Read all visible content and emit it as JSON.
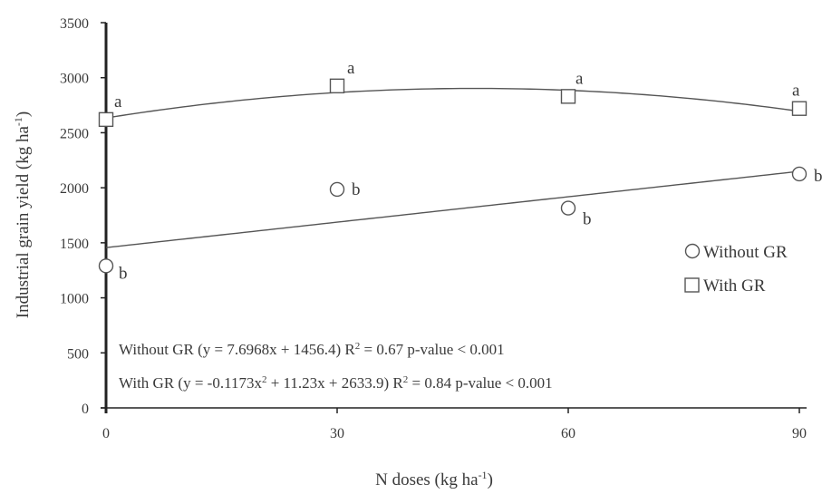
{
  "chart_data": {
    "type": "scatter",
    "xlabel": "N doses (kg ha",
    "xlabel_sup": "-1",
    "xlabel_end": ")",
    "ylabel": "Industrial grain yield (kg ha",
    "ylabel_sup": "-1",
    "ylabel_end": ")",
    "xlim": [
      0,
      90
    ],
    "ylim": [
      0,
      3500
    ],
    "xticks": [
      "0",
      "30",
      "60",
      "90"
    ],
    "xtick_values": [
      0,
      30,
      60,
      90
    ],
    "yticks": [
      "0",
      "500",
      "1000",
      "1500",
      "2000",
      "2500",
      "3000",
      "3500"
    ],
    "ytick_values": [
      0,
      500,
      1000,
      1500,
      2000,
      2500,
      3000,
      3500
    ],
    "grid": false,
    "legend_position": "right",
    "series": [
      {
        "name": "Without GR",
        "marker": "circle",
        "x": [
          0,
          30,
          60,
          90
        ],
        "y": [
          1290,
          1985,
          1815,
          2125
        ],
        "letters": [
          "b",
          "b",
          "b",
          "b"
        ],
        "fit": {
          "type": "linear",
          "coef": [
            1456.4,
            7.6968
          ]
        },
        "equation_parts": [
          "Without GR (y = 7.6968x + 1456.4) R",
          "2",
          " = 0.67  p-value < 0.001"
        ]
      },
      {
        "name": "With GR",
        "marker": "square",
        "x": [
          0,
          30,
          60,
          90
        ],
        "y": [
          2620,
          2925,
          2830,
          2720
        ],
        "letters": [
          "a",
          "a",
          "a",
          "a"
        ],
        "fit": {
          "type": "quadratic",
          "coef": [
            2633.9,
            11.23,
            -0.1173
          ]
        },
        "equation_parts": [
          "With GR (y = -0.1173x",
          "2",
          " + 11.23x + 2633.9) R",
          "2",
          " = 0.84 p-value < 0.001"
        ]
      }
    ]
  }
}
